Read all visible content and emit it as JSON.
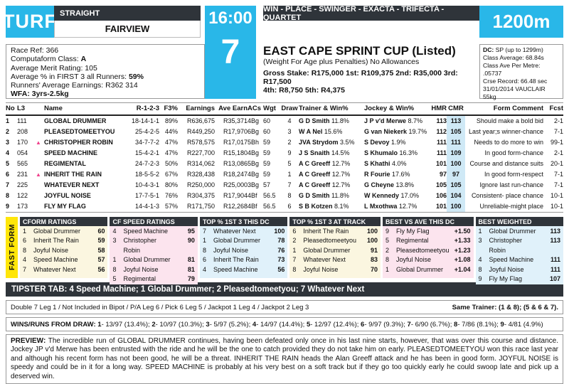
{
  "header": {
    "surface": "TURF",
    "course_type": "STRAIGHT",
    "venue": "FAIRVIEW",
    "time": "16:00",
    "race_number": "7",
    "bet_types": "WIN - PLACE - SWINGER - EXACTA - TRIFECTA - QUARTET",
    "distance": "1200m",
    "accent_color": "#29b7e8",
    "bar_color": "#2f343a"
  },
  "race_info": {
    "lines": [
      [
        {
          "t": "Race Ref: 366",
          "b": false
        }
      ],
      [
        {
          "t": "Computaform Class: ",
          "b": false
        },
        {
          "t": "A",
          "b": true
        }
      ],
      [
        {
          "t": "Average Merit Rating: 105",
          "b": false
        }
      ],
      [
        {
          "t": "Average % in FIRST 3 all Runners: ",
          "b": false
        },
        {
          "t": "59%",
          "b": true
        }
      ],
      [
        {
          "t": "Runners' Average Earnings: R362 314",
          "b": false
        }
      ],
      [
        {
          "t": "WFA: 3yrs-2.5kg",
          "b": true
        }
      ]
    ]
  },
  "race_title": {
    "name": "EAST CAPE SPRINT CUP (Listed)",
    "conditions": "(Weight For Age plus Penalties) No Allowances",
    "stake_line1": "Gross Stake: R175,000 1st: R109,375 2nd: R35,000 3rd: R17,500",
    "stake_line2": "4th: R8,750 5th: R4,375"
  },
  "dc_box": {
    "lines": [
      [
        {
          "t": "DC:",
          "b": true
        },
        {
          "t": " SP (up to 1299m)",
          "b": false
        }
      ],
      [
        {
          "t": "Class Average: 68.84s",
          "b": false
        }
      ],
      [
        {
          "t": "Class Ave Per Metre: .05737",
          "b": false
        }
      ],
      [
        {
          "t": "Crse Record: 66.48 sec",
          "b": false
        }
      ],
      [
        {
          "t": "31/01/2014 VAUCLAIR 55kg",
          "b": false
        }
      ]
    ]
  },
  "table": {
    "columns": [
      "No",
      "L3",
      "",
      "Name",
      "R-1-2-3",
      "F3%",
      "Earnings",
      "Ave Earn",
      "ACs",
      "Wgt",
      "Draw",
      "Trainer & Win%",
      "Jockey & Win%",
      "HMR",
      "CMR",
      "Form Comment",
      "Fcst"
    ],
    "rows": [
      {
        "no": "1",
        "l3": "111",
        "up": false,
        "name": "GLOBAL DRUMMER",
        "r123": "18-14-1-1",
        "f3": "89%",
        "earnings": "R636,675",
        "ave_earn": "R35,371",
        "acs": "4Bg",
        "wgt": "60",
        "draw": "4",
        "trainer": "G D Smith",
        "trainer_win": "11.8%",
        "jockey": "J P v'd Merwe",
        "jockey_win": "8.7%",
        "hmr": "113",
        "cmr": "113",
        "comment": "Should make a bold bid",
        "fcst": "2-1"
      },
      {
        "no": "2",
        "l3": "208",
        "up": false,
        "name": "PLEASEDTOMEETYOU",
        "r123": "25-4-2-5",
        "f3": "44%",
        "earnings": "R449,250",
        "ave_earn": "R17,970",
        "acs": "6Bg",
        "wgt": "60",
        "draw": "3",
        "trainer": "W A Nel",
        "trainer_win": "15.6%",
        "jockey": "G van Niekerk",
        "jockey_win": "19.7%",
        "hmr": "112",
        "cmr": "105",
        "comment": "Last year;s winner-chance",
        "fcst": "7-1"
      },
      {
        "no": "3",
        "l3": "170",
        "up": true,
        "name": "CHRISTOPHER ROBIN",
        "r123": "34-7-7-2",
        "f3": "47%",
        "earnings": "R578,575",
        "ave_earn": "R17,017",
        "acs": "5Bh",
        "wgt": "59",
        "draw": "2",
        "trainer": "JVA Strydom",
        "trainer_win": "3.5%",
        "jockey": "S Devoy",
        "jockey_win": "1.9%",
        "hmr": "111",
        "cmr": "111",
        "comment": "Needs to do more to win",
        "fcst": "99-1"
      },
      {
        "no": "4",
        "l3": "054",
        "up": false,
        "name": "SPEED MACHINE",
        "r123": "15-4-2-1",
        "f3": "47%",
        "earnings": "R227,700",
        "ave_earn": "R15,180",
        "acs": "4Bg",
        "wgt": "59",
        "draw": "9",
        "trainer": "J S Snaith",
        "trainer_win": "14.5%",
        "jockey": "S Khumalo",
        "jockey_win": "16.3%",
        "hmr": "111",
        "cmr": "109",
        "comment": "In good form-chance",
        "fcst": "2-1"
      },
      {
        "no": "5",
        "l3": "565",
        "up": false,
        "name": "REGIMENTAL",
        "r123": "24-7-2-3",
        "f3": "50%",
        "earnings": "R314,062",
        "ave_earn": "R13,086",
        "acs": "5Bg",
        "wgt": "59",
        "draw": "5",
        "trainer": "A C Greeff",
        "trainer_win": "12.7%",
        "jockey": "S Khathi",
        "jockey_win": "4.0%",
        "hmr": "101",
        "cmr": "100",
        "comment": "Course and distance suits",
        "fcst": "20-1"
      },
      {
        "no": "6",
        "l3": "231",
        "up": true,
        "name": "INHERIT THE RAIN",
        "r123": "18-5-5-2",
        "f3": "67%",
        "earnings": "R328,438",
        "ave_earn": "R18,247",
        "acs": "4Bg",
        "wgt": "59",
        "draw": "1",
        "trainer": "A C Greeff",
        "trainer_win": "12.7%",
        "jockey": "R Fourie",
        "jockey_win": "17.6%",
        "hmr": "97",
        "cmr": "97",
        "comment": "In good form-respect",
        "fcst": "7-1"
      },
      {
        "no": "7",
        "l3": "225",
        "up": false,
        "name": "WHATEVER NEXT",
        "r123": "10-4-3-1",
        "f3": "80%",
        "earnings": "R250,000",
        "ave_earn": "R25,000",
        "acs": "3Bg",
        "wgt": "57",
        "draw": "7",
        "trainer": "A C Greeff",
        "trainer_win": "12.7%",
        "jockey": "G Cheyne",
        "jockey_win": "13.8%",
        "hmr": "105",
        "cmr": "105",
        "comment": "Ignore last run-chance",
        "fcst": "7-1"
      },
      {
        "no": "8",
        "l3": "122",
        "up": false,
        "name": "JOYFUL NOISE",
        "r123": "17-7-5-1",
        "f3": "76%",
        "earnings": "R304,375",
        "ave_earn": "R17,904",
        "acs": "4Bf",
        "wgt": "56.5",
        "draw": "8",
        "trainer": "G D Smith",
        "trainer_win": "11.8%",
        "jockey": "W Kennedy",
        "jockey_win": "17.0%",
        "hmr": "106",
        "cmr": "104",
        "comment": "Consistent- place chance",
        "fcst": "10-1"
      },
      {
        "no": "9",
        "l3": "173",
        "up": false,
        "name": "FLY MY FLAG",
        "r123": "14-4-1-3",
        "f3": "57%",
        "earnings": "R171,750",
        "ave_earn": "R12,268",
        "acs": "4Bf",
        "wgt": "56.5",
        "draw": "6",
        "trainer": "S B Kotzen",
        "trainer_win": "8.1%",
        "jockey": "L Mxothwa",
        "jockey_win": "12.7%",
        "hmr": "101",
        "cmr": "100",
        "comment": "Unreliable-might place",
        "fcst": "10-1"
      }
    ]
  },
  "fast_form": {
    "label": "FAST FORM",
    "boxes": [
      {
        "title": "CFORM RATINGS",
        "bg": "cream",
        "entries": [
          {
            "no": "1",
            "name": "Global Drummer",
            "value": "60"
          },
          {
            "no": "6",
            "name": "Inherit The Rain",
            "value": "59"
          },
          {
            "no": "8",
            "name": "Joyful Noise",
            "value": "58"
          },
          {
            "no": "4",
            "name": "Speed Machine",
            "value": "57"
          },
          {
            "no": "7",
            "name": "Whatever Next",
            "value": "56"
          }
        ]
      },
      {
        "title": "CF SPEED RATINGS",
        "bg": "pink",
        "entries": [
          {
            "no": "4",
            "name": "Speed Machine",
            "value": "95"
          },
          {
            "no": "3",
            "name": "Christopher Robin",
            "value": "90"
          },
          {
            "no": "1",
            "name": "Global Drummer",
            "value": "81"
          },
          {
            "no": "8",
            "name": "Joyful Noise",
            "value": "81"
          },
          {
            "no": "5",
            "name": "Regimental",
            "value": "79"
          }
        ]
      },
      {
        "title": "TOP % 1ST 3 THIS DC",
        "bg": "blue",
        "entries": [
          {
            "no": "7",
            "name": "Whatever Next",
            "value": "100"
          },
          {
            "no": "1",
            "name": "Global Drummer",
            "value": "78"
          },
          {
            "no": "8",
            "name": "Joyful Noise",
            "value": "76"
          },
          {
            "no": "6",
            "name": "Inherit The Rain",
            "value": "73"
          },
          {
            "no": "4",
            "name": "Speed Machine",
            "value": "56"
          }
        ]
      },
      {
        "title": "TOP % 1ST 3 AT TRACK",
        "bg": "cream",
        "entries": [
          {
            "no": "6",
            "name": "Inherit The Rain",
            "value": "100"
          },
          {
            "no": "2",
            "name": "Pleasedtomeetyou",
            "value": "100"
          },
          {
            "no": "1",
            "name": "Global Drummer",
            "value": "91"
          },
          {
            "no": "7",
            "name": "Whatever Next",
            "value": "83"
          },
          {
            "no": "8",
            "name": "Joyful Noise",
            "value": "70"
          }
        ]
      },
      {
        "title": "BEST VS AVE THIS DC",
        "bg": "pink",
        "entries": [
          {
            "no": "9",
            "name": "Fly My Flag",
            "value": "+1.50"
          },
          {
            "no": "5",
            "name": "Regimental",
            "value": "+1.33"
          },
          {
            "no": "2",
            "name": "Pleasedtomeetyou",
            "value": "+1.23"
          },
          {
            "no": "8",
            "name": "Joyful Noise",
            "value": "+1.08"
          },
          {
            "no": "1",
            "name": "Global Drummer",
            "value": "+1.04"
          }
        ]
      },
      {
        "title": "BEST WEIGHTED",
        "bg": "blue",
        "entries": [
          {
            "no": "1",
            "name": "Global Drummer",
            "value": "113"
          },
          {
            "no": "3",
            "name": "Christopher Robin",
            "value": "113"
          },
          {
            "no": "4",
            "name": "Speed Machine",
            "value": "111"
          },
          {
            "no": "8",
            "name": "Joyful Noise",
            "value": "111"
          },
          {
            "no": "9",
            "name": "Fly My Flag",
            "value": "107"
          }
        ]
      }
    ]
  },
  "tipster": {
    "text": "TIPSTER TAB: 4 Speed Machine; 1 Global Drummer; 2 Pleasedtomeetyou; 7 Whatever Next"
  },
  "legs": {
    "left": "Double 7 Leg 1 / Not Included in Bipot / P/A Leg 6 / Pick 6 Leg 5 / Jackpot 1 Leg 4 / Jackpot 2 Leg 3",
    "right": "Same Trainer: (1 & 8); (5 & 6 & 7)."
  },
  "draw_stats": {
    "label": "WINS/RUNS FROM DRAW:",
    "entries": [
      {
        "draw": "1",
        "value": "13/97 (13.4%)"
      },
      {
        "draw": "2",
        "value": "10/97 (10.3%)"
      },
      {
        "draw": "3",
        "value": "5/97 (5.2%)"
      },
      {
        "draw": "4",
        "value": "14/97 (14.4%)"
      },
      {
        "draw": "5",
        "value": "12/97 (12.4%)"
      },
      {
        "draw": "6",
        "value": "9/97 (9.3%)"
      },
      {
        "draw": "7",
        "value": "6/90 (6.7%)"
      },
      {
        "draw": "8",
        "value": "7/86 (8.1%)"
      },
      {
        "draw": "9",
        "value": "4/81 (4.9%)"
      }
    ]
  },
  "preview": {
    "label": "PREVIEW:",
    "text": "The incredible run of GLOBAL DRUMMER continues, having been defeated only once in his last nine starts, however, that was over this course and distance. Jockey JP v'd Merwe has been entrusted with the ride and he will be the one to catch provided they do not take him on early. PLEASEDTOMEETYOU won this race last year and although his recent form has not been good, he will be a threat. INHERIT THE RAIN heads the Alan Greeff attack and he has been in good form. JOYFUL NOISE is speedy and could be in it for a long way. SPEED MACHINE is probably at his very best on a soft track but if they go too quickly early he could swoop late and pick up a deserved win."
  }
}
